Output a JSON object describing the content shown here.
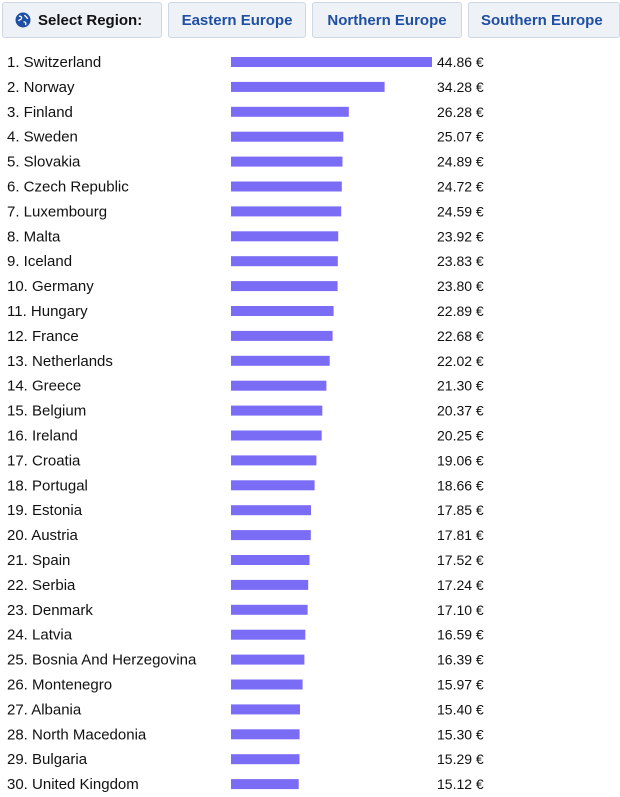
{
  "region_selector": {
    "label": "Select Region:",
    "icon": "globe-icon",
    "options": [
      "Eastern Europe",
      "Northern Europe",
      "Southern Europe"
    ]
  },
  "colors": {
    "bar": "#7b6cf6",
    "button_bg": "#eef1f6",
    "button_text": "#1f4fa3"
  },
  "chart_data": {
    "type": "bar",
    "orientation": "horizontal",
    "title": "",
    "unit": "€",
    "categories": [
      "1. Switzerland",
      "2. Norway",
      "3. Finland",
      "4. Sweden",
      "5. Slovakia",
      "6. Czech Republic",
      "7. Luxembourg",
      "8. Malta",
      "9. Iceland",
      "10. Germany",
      "11. Hungary",
      "12. France",
      "13. Netherlands",
      "14. Greece",
      "15. Belgium",
      "16. Ireland",
      "17. Croatia",
      "18. Portugal",
      "19. Estonia",
      "20. Austria",
      "21. Spain",
      "22. Serbia",
      "23. Denmark",
      "24. Latvia",
      "25. Bosnia And Herzegovina",
      "26. Montenegro",
      "27. Albania",
      "28. North Macedonia",
      "29. Bulgaria",
      "30. United Kingdom"
    ],
    "values": [
      44.86,
      34.28,
      26.28,
      25.07,
      24.89,
      24.72,
      24.59,
      23.92,
      23.83,
      23.8,
      22.89,
      22.68,
      22.02,
      21.3,
      20.37,
      20.25,
      19.06,
      18.66,
      17.85,
      17.81,
      17.52,
      17.24,
      17.1,
      16.59,
      16.39,
      15.97,
      15.4,
      15.3,
      15.29,
      15.12
    ],
    "value_labels": [
      "44.86 €",
      "34.28 €",
      "26.28 €",
      "25.07 €",
      "24.89 €",
      "24.72 €",
      "24.59 €",
      "23.92 €",
      "23.83 €",
      "23.80 €",
      "22.89 €",
      "22.68 €",
      "22.02 €",
      "21.30 €",
      "20.37 €",
      "20.25 €",
      "19.06 €",
      "18.66 €",
      "17.85 €",
      "17.81 €",
      "17.52 €",
      "17.24 €",
      "17.10 €",
      "16.59 €",
      "16.39 €",
      "15.97 €",
      "15.40 €",
      "15.30 €",
      "15.29 €",
      "15.12 €"
    ],
    "xlim": [
      0,
      44.86
    ],
    "grid": false,
    "legend": "none"
  }
}
